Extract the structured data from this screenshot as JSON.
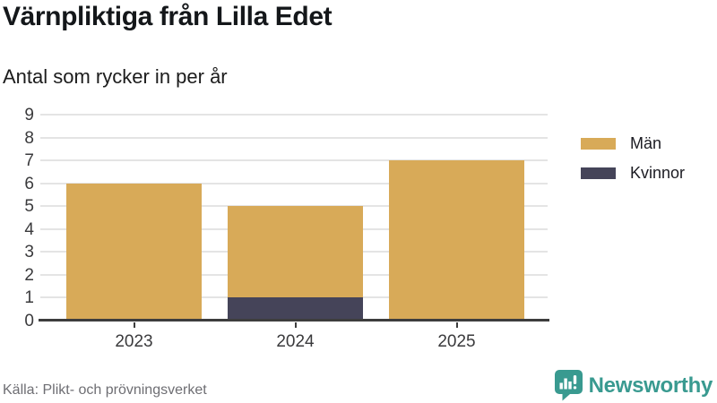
{
  "chart_data": {
    "type": "bar",
    "stacked": true,
    "title": "Värnpliktiga från Lilla Edet",
    "subtitle": "Antal som rycker in per år",
    "categories": [
      "2023",
      "2024",
      "2025"
    ],
    "series": [
      {
        "name": "Kvinnor",
        "color": "#454459",
        "values": [
          0,
          1,
          0
        ]
      },
      {
        "name": "Män",
        "color": "#d8aa58",
        "values": [
          6,
          4,
          7
        ]
      }
    ],
    "stack_order": "bottom-to-top",
    "totals": [
      6,
      5,
      7
    ],
    "ylim": [
      0,
      9
    ],
    "ytick_step": 1,
    "yticks": [
      0,
      1,
      2,
      3,
      4,
      5,
      6,
      7,
      8,
      9
    ],
    "grid": true,
    "legend_position": "right",
    "legend": [
      {
        "label": "Män",
        "color": "#d8aa58"
      },
      {
        "label": "Kvinnor",
        "color": "#454459"
      }
    ]
  },
  "footer": {
    "source": "Källa: Plikt- och prövningsverket",
    "brand": "Newsworthy"
  },
  "icons": {
    "logo_icon": "newsworthy-speech-bubble-bar-chart-icon"
  },
  "colors": {
    "men": "#d8aa58",
    "women": "#454459",
    "brand_teal": "#399a90",
    "gridline": "#e4e4e4",
    "axis": "#3d3d3d",
    "title_text": "#14171a",
    "muted_text": "#6e6e73"
  }
}
